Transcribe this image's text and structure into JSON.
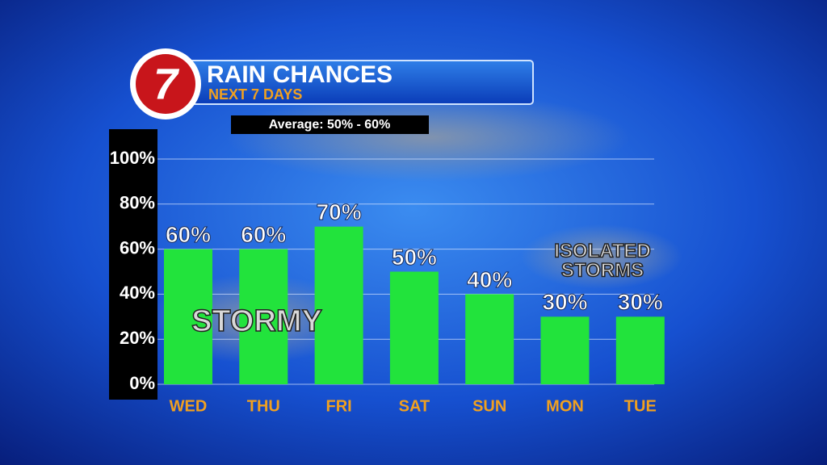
{
  "chart_data": {
    "type": "bar",
    "title": "RAIN CHANCES",
    "subtitle": "NEXT 7 DAYS",
    "logo": "7",
    "note": "Average: 50% - 60%",
    "categories": [
      "WED",
      "THU",
      "FRI",
      "SAT",
      "SUN",
      "MON",
      "TUE"
    ],
    "values": [
      60,
      60,
      70,
      50,
      40,
      30,
      30
    ],
    "value_labels": [
      "60%",
      "60%",
      "70%",
      "50%",
      "40%",
      "30%",
      "30%"
    ],
    "color": "#22e33c",
    "ylim": [
      0,
      100
    ],
    "yticks": [
      {
        "value": 0,
        "label": "0%"
      },
      {
        "value": 20,
        "label": "20%"
      },
      {
        "value": 40,
        "label": "40%"
      },
      {
        "value": 60,
        "label": "60%"
      },
      {
        "value": 80,
        "label": "80%"
      },
      {
        "value": 100,
        "label": "100%"
      }
    ],
    "grid": true,
    "annotations": [
      "STORMY",
      "ISOLATED",
      "STORMS"
    ]
  }
}
